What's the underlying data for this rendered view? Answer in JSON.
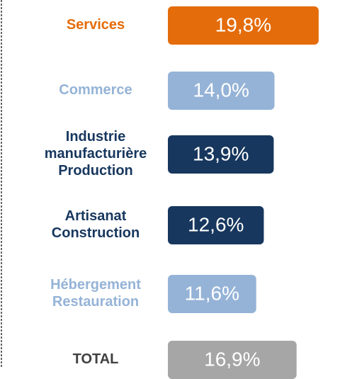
{
  "chart_data": {
    "type": "bar",
    "orientation": "horizontal",
    "categories": [
      "Services",
      "Commerce",
      "Industrie\nmanufacturière\nProduction",
      "Artisanat\nConstruction",
      "Hébergement\nRestauration",
      "TOTAL"
    ],
    "values": [
      19.8,
      14.0,
      13.9,
      12.6,
      11.6,
      16.9
    ],
    "value_labels": [
      "19,8%",
      "14,0%",
      "13,9%",
      "12,6%",
      "11,6%",
      "16,9%"
    ],
    "colors": [
      "#e46c0a",
      "#95b3d7",
      "#17375e",
      "#17375e",
      "#95b3d7",
      "#a6a6a6"
    ],
    "label_colors": [
      "#e46c0a",
      "#95b3d7",
      "#17375e",
      "#17375e",
      "#95b3d7",
      "#404040"
    ],
    "xlim": [
      0,
      20
    ]
  }
}
